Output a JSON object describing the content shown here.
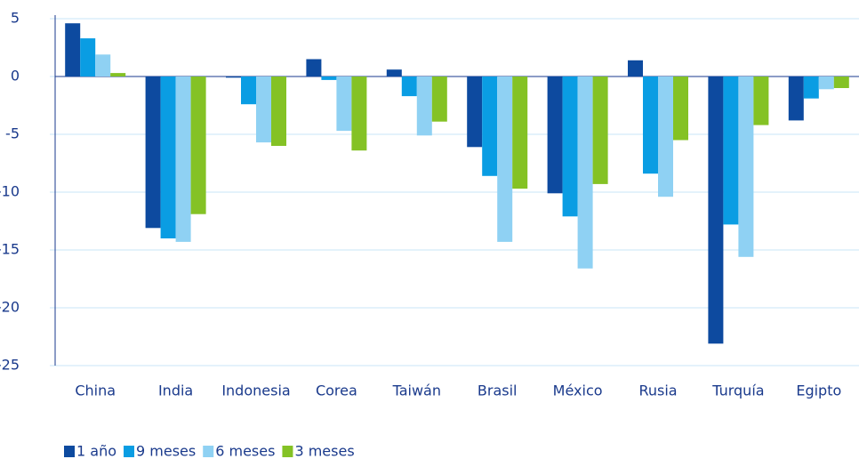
{
  "chart_data": {
    "type": "bar",
    "categories": [
      "China",
      "India",
      "Indonesia",
      "Corea",
      "Taiwán",
      "Brasil",
      "México",
      "Rusia",
      "Turquía",
      "Egipto"
    ],
    "series": [
      {
        "name": "1 año",
        "color": "#0d4a9f",
        "values": [
          4.6,
          -13.1,
          -0.1,
          1.5,
          0.6,
          -6.1,
          -10.1,
          1.4,
          -23.1,
          -3.8
        ]
      },
      {
        "name": "9 meses",
        "color": "#0a9de3",
        "values": [
          3.3,
          -14.0,
          -2.4,
          -0.3,
          -1.7,
          -8.6,
          -12.1,
          -8.4,
          -12.8,
          -1.9
        ]
      },
      {
        "name": "6 meses",
        "color": "#8fd1f3",
        "values": [
          1.9,
          -14.3,
          -5.7,
          -4.7,
          -5.1,
          -14.3,
          -16.6,
          -10.4,
          -15.6,
          -1.1
        ]
      },
      {
        "name": "3 meses",
        "color": "#84c225",
        "values": [
          0.3,
          -11.9,
          -6.0,
          -6.4,
          -3.9,
          -9.7,
          -9.3,
          -5.5,
          -4.2,
          -1.0
        ]
      }
    ],
    "ylim": [
      -25,
      5
    ],
    "yticks": [
      -25,
      -20,
      -15,
      -10,
      -5,
      0,
      5
    ],
    "grid": true
  }
}
